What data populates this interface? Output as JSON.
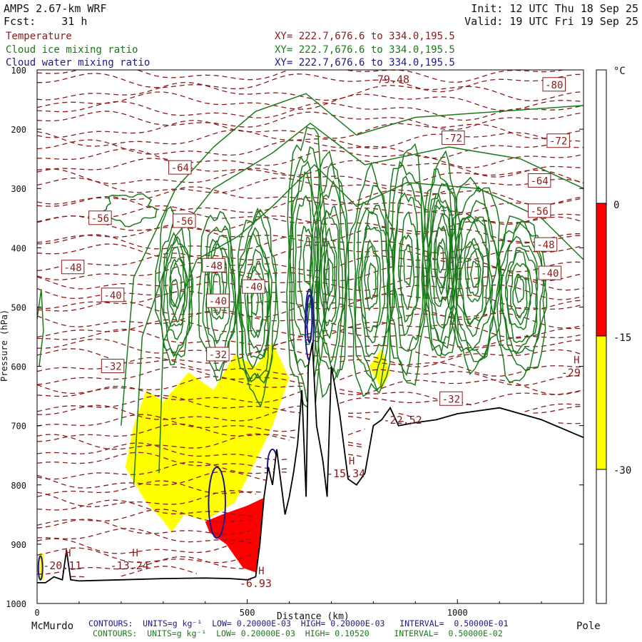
{
  "header": {
    "model": "AMPS 2.67-km WRF",
    "forecast_label": "Fcst:",
    "forecast_value": "31 h",
    "init": "Init: 12 UTC Thu 18 Sep 25",
    "valid": "Valid: 19 UTC Fri 19 Sep 25"
  },
  "fields": [
    {
      "name": "Temperature",
      "xy": "XY= 222.7,676.6 to 334.0,195.5",
      "color": "#8b1a1a"
    },
    {
      "name": "Cloud ice mixing ratio",
      "xy": "XY= 222.7,676.6 to 334.0,195.5",
      "color": "#1a7a1a"
    },
    {
      "name": "Cloud water mixing ratio",
      "xy": "XY= 222.7,676.6 to 334.0,195.5",
      "color": "#1a1a8b"
    }
  ],
  "footer": {
    "left_label": "McMurdo",
    "right_label": "Pole",
    "water_contours": "CONTOURS:  UNITS=g kg⁻¹  LOW= 0.20000E-03  HIGH= 0.20000E-03   INTERVAL=  0.50000E-01",
    "ice_contours": "CONTOURS:  UNITS=g kg⁻¹  LOW= 0.20000E-03  HIGH= 0.10520     INTERVAL=  0.50000E-02"
  },
  "colors": {
    "temperature": "#8b1a1a",
    "ice": "#1a7a1a",
    "water": "#1a1a8b",
    "terrain": "#000000",
    "shade_warm": "#ff0000",
    "shade_cold": "#ffff00"
  },
  "chart_data": {
    "type": "cross-section",
    "title": "AMPS 2.67-km WRF",
    "xlabel": "Distance (km)",
    "ylabel": "Pressure (hPa)",
    "xlim": [
      0,
      1300
    ],
    "ylim": [
      1000,
      100
    ],
    "x_ticks": [
      0,
      500,
      1000
    ],
    "y_ticks": [
      100,
      200,
      300,
      400,
      500,
      600,
      700,
      800,
      900,
      1000
    ],
    "colorbar": {
      "unit": "°C",
      "ticks": [
        0,
        -15,
        -30
      ],
      "bands": [
        {
          "from": -15,
          "to": 0,
          "color": "#ff0000"
        },
        {
          "from": -30,
          "to": -15,
          "color": "#ffff00"
        }
      ]
    },
    "temperature_labels": [
      {
        "text": "-80",
        "x": 1230,
        "p": 125
      },
      {
        "text": "-72",
        "x": 990,
        "p": 215
      },
      {
        "text": "-72",
        "x": 1240,
        "p": 220
      },
      {
        "text": "-64",
        "x": 340,
        "p": 265
      },
      {
        "text": "-64",
        "x": 1195,
        "p": 287
      },
      {
        "text": "-56",
        "x": 150,
        "p": 350
      },
      {
        "text": "-56",
        "x": 350,
        "p": 355
      },
      {
        "text": "-56",
        "x": 1195,
        "p": 338
      },
      {
        "text": "-48",
        "x": 85,
        "p": 433
      },
      {
        "text": "-48",
        "x": 420,
        "p": 430
      },
      {
        "text": "-48",
        "x": 1210,
        "p": 395
      },
      {
        "text": "-40",
        "x": 180,
        "p": 480
      },
      {
        "text": "-40",
        "x": 515,
        "p": 466
      },
      {
        "text": "-40",
        "x": 1220,
        "p": 443
      },
      {
        "text": "-40",
        "x": 430,
        "p": 490
      },
      {
        "text": "-32",
        "x": 180,
        "p": 600
      },
      {
        "text": "-32",
        "x": 430,
        "p": 580
      },
      {
        "text": "-32",
        "x": 985,
        "p": 655
      }
    ],
    "extrema_labels": [
      {
        "marker": "H",
        "value": "-20.11",
        "x": 60,
        "p": 930
      },
      {
        "marker": "H",
        "value": "-13.24",
        "x": 220,
        "p": 930
      },
      {
        "marker": "H",
        "value": "-6.93",
        "x": 520,
        "p": 960
      },
      {
        "marker": "H",
        "value": "-15.34",
        "x": 735,
        "p": 775
      },
      {
        "marker": "",
        "value": "-22.52",
        "x": 870,
        "p": 685
      },
      {
        "marker": "H",
        "value": "-29",
        "x": 1270,
        "p": 605
      },
      {
        "marker": "",
        "value": "-79.48",
        "x": 840,
        "p": 110
      }
    ],
    "terrain_surface": {
      "x": [
        0,
        20,
        40,
        60,
        70,
        80,
        100,
        200,
        300,
        400,
        460,
        500,
        520,
        530,
        540,
        550,
        560,
        570,
        590,
        600,
        610,
        620,
        630,
        640,
        645,
        655,
        665,
        680,
        690,
        700,
        720,
        740,
        760,
        780,
        800,
        820,
        840,
        860,
        900,
        950,
        1000,
        1100,
        1200,
        1300
      ],
      "p": [
        965,
        965,
        955,
        960,
        910,
        960,
        962,
        960,
        958,
        957,
        958,
        960,
        955,
        900,
        820,
        770,
        800,
        740,
        850,
        820,
        780,
        730,
        640,
        820,
        600,
        560,
        700,
        760,
        820,
        600,
        680,
        790,
        800,
        780,
        700,
        690,
        670,
        700,
        695,
        690,
        680,
        670,
        690,
        720
      ]
    }
  }
}
